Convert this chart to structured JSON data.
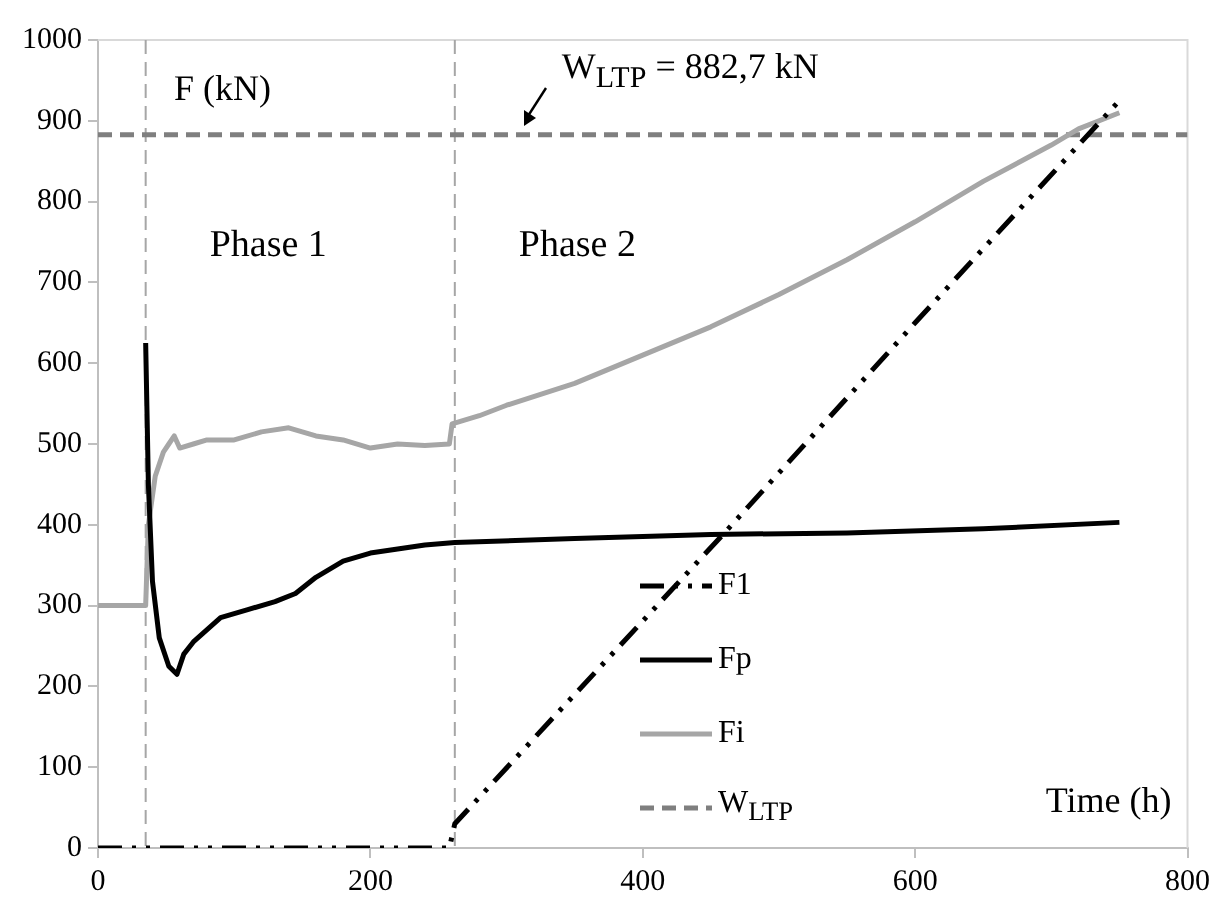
{
  "chart_data": {
    "type": "line",
    "ylabel": "F (kN)",
    "xlabel": "Time (h)",
    "xlim": [
      0,
      800
    ],
    "xticks": [
      0,
      200,
      400,
      600,
      800
    ],
    "ylim": [
      0,
      1000
    ],
    "yticks": [
      0,
      100,
      200,
      300,
      400,
      500,
      600,
      700,
      800,
      900,
      1000
    ],
    "grid": false,
    "legend": "bottom right",
    "marker": "none",
    "series": [
      {
        "name": "F1",
        "color": "#000000",
        "line_style": "dashdot",
        "x": [
          0,
          258,
          262,
          460,
          600,
          750
        ],
        "values": [
          0,
          0,
          30,
          390,
          650,
          925
        ]
      },
      {
        "name": "Fp",
        "color": "#000000",
        "line_style": "solid",
        "x": [
          35,
          37,
          40,
          45,
          52,
          58,
          63,
          70,
          90,
          110,
          130,
          145,
          160,
          180,
          200,
          220,
          240,
          262,
          350,
          450,
          550,
          650,
          750
        ],
        "values": [
          625,
          450,
          330,
          260,
          225,
          215,
          240,
          255,
          285,
          295,
          305,
          315,
          335,
          355,
          365,
          370,
          375,
          378,
          383,
          388,
          390,
          395,
          403
        ]
      },
      {
        "name": "Fi",
        "color": "#a6a6a6",
        "line_style": "solid",
        "x": [
          0,
          35,
          37,
          42,
          48,
          52,
          56,
          60,
          70,
          80,
          100,
          120,
          140,
          160,
          180,
          200,
          220,
          240,
          258,
          260,
          280,
          300,
          350,
          400,
          450,
          500,
          550,
          600,
          650,
          700,
          720,
          750
        ],
        "values": [
          300,
          300,
          400,
          460,
          490,
          500,
          510,
          495,
          500,
          505,
          505,
          515,
          520,
          510,
          505,
          495,
          500,
          498,
          500,
          525,
          535,
          548,
          575,
          610,
          645,
          685,
          728,
          775,
          825,
          870,
          890,
          910
        ]
      },
      {
        "name": "W$_{LTP}$",
        "color": "#7f7f7f",
        "line_style": "dashed",
        "x": [
          0,
          800
        ],
        "values": [
          882.7,
          882.7
        ]
      }
    ],
    "ref_lines": [
      {
        "axis": "x",
        "value": 35,
        "color": "#a6a6a6",
        "line_style": "dashed"
      },
      {
        "axis": "x",
        "value": 262,
        "color": "#a6a6a6",
        "line_style": "dashed"
      }
    ],
    "annotations": [
      {
        "text": "W$_{LTP}$ = 882,7 kN",
        "x": 320,
        "y": 882.7
      },
      "Phase 1",
      "Phase 2"
    ]
  }
}
